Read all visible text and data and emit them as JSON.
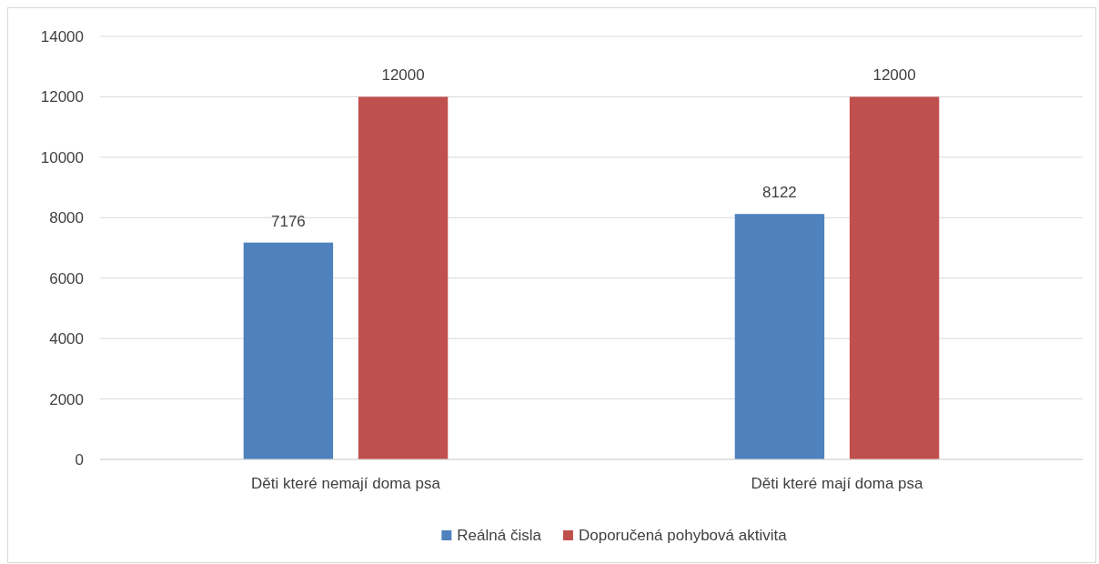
{
  "chart_data": {
    "type": "bar",
    "categories": [
      "Děti které nemají doma psa",
      "Děti které mají doma psa"
    ],
    "series": [
      {
        "name": "Reálná čisla",
        "color": "#4f81bd",
        "values": [
          7176,
          8122
        ]
      },
      {
        "name": "Doporučená pohybová aktivita",
        "color": "#c0504d",
        "values": [
          12000,
          12000
        ]
      }
    ],
    "ylim": [
      0,
      14000
    ],
    "yticks": [
      0,
      2000,
      4000,
      6000,
      8000,
      10000,
      12000,
      14000
    ],
    "grid": "y",
    "legend": "bottom",
    "data_labels": true
  }
}
